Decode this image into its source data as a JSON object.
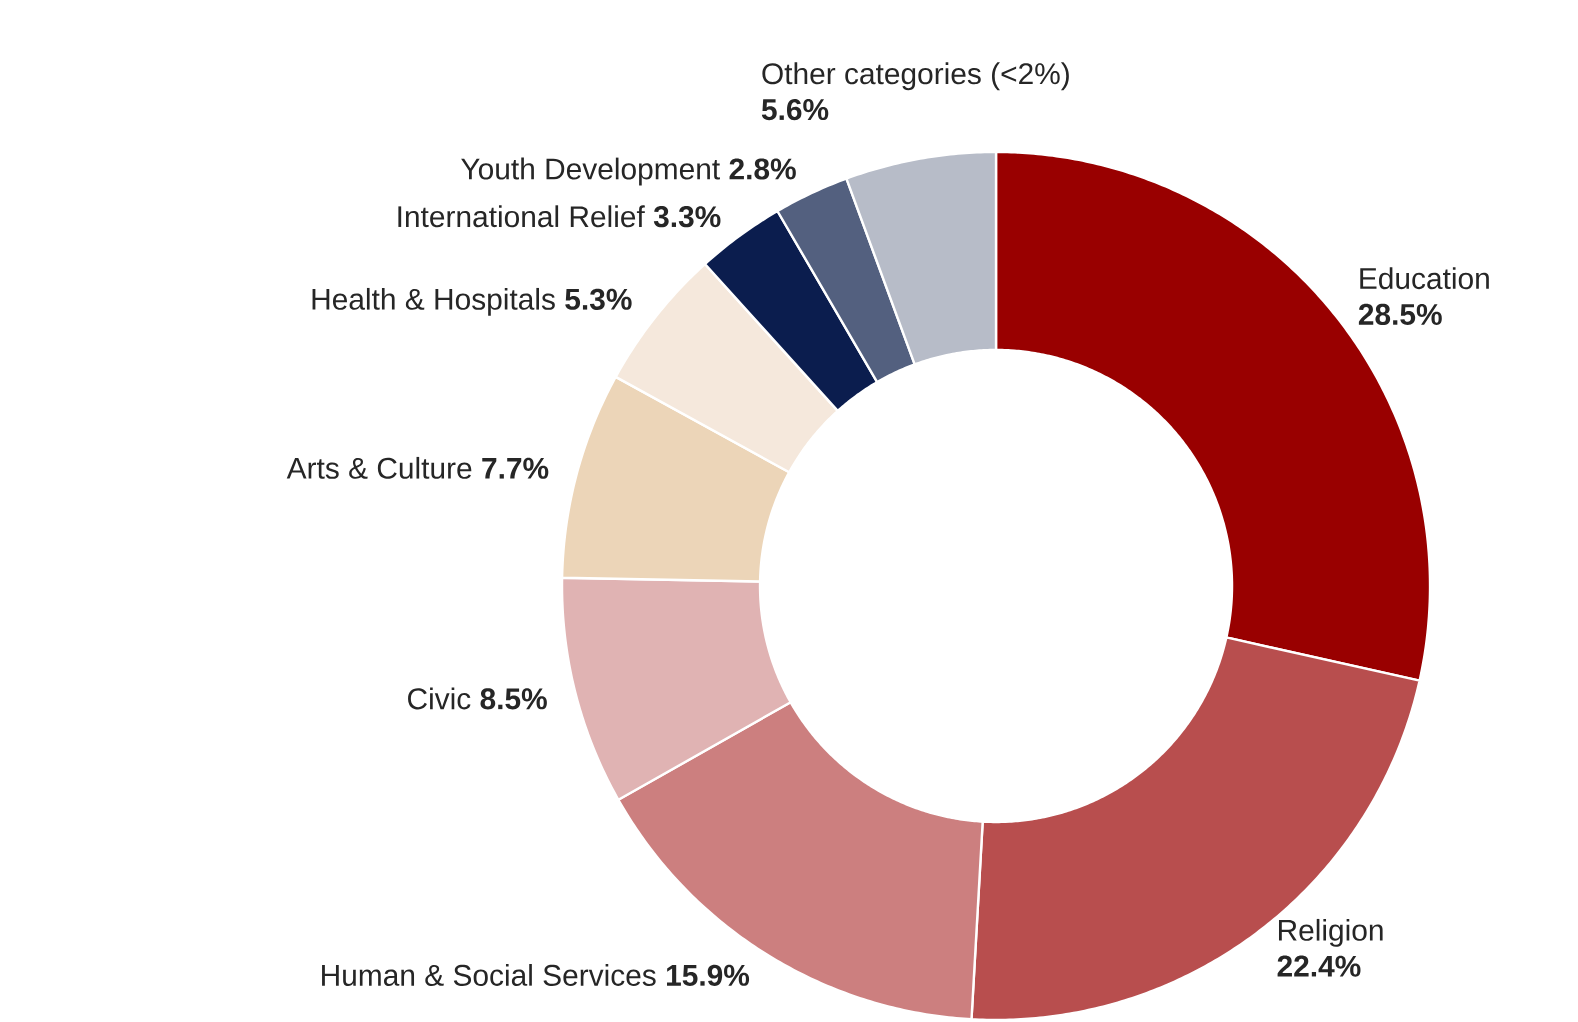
{
  "chart_data": {
    "type": "donut",
    "categories": [
      "Education",
      "Religion",
      "Human & Social Services",
      "Civic",
      "Arts & Culture",
      "Health & Hospitals",
      "International Relief",
      "Youth Development",
      "Other categories (<2%)"
    ],
    "values": [
      28.5,
      22.4,
      15.9,
      8.5,
      7.7,
      5.3,
      3.3,
      2.8,
      5.6
    ],
    "value_labels": [
      "28.5%",
      "22.4%",
      "15.9%",
      "8.5%",
      "7.7%",
      "5.3%",
      "3.3%",
      "2.8%",
      "5.6%"
    ],
    "colors": [
      "#990000",
      "#b84e4e",
      "#cc7f7f",
      "#e0b3b3",
      "#ecd5b8",
      "#f5e8dc",
      "#0b1d4e",
      "#53607f",
      "#b7bcc8"
    ]
  }
}
